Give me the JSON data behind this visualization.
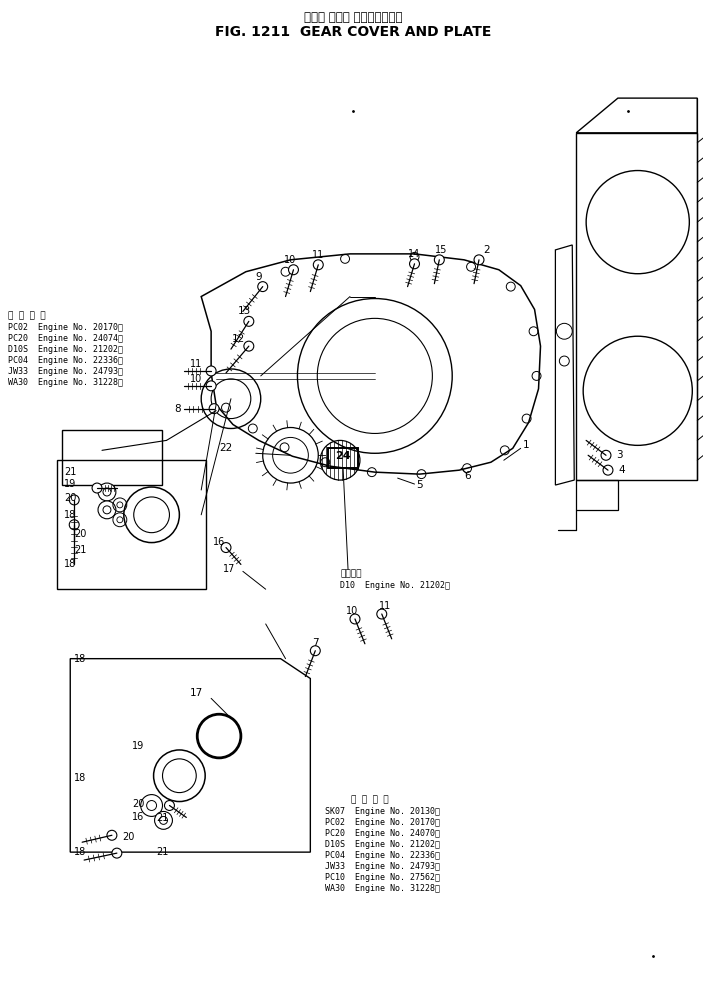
{
  "title_jp": "ギヤー カバー およびプレート",
  "title_en": "FIG. 1211  GEAR COVER AND PLATE",
  "bg_color": "#ffffff",
  "fig_width": 7.06,
  "fig_height": 9.81,
  "app_top_header": "適 用 号 機",
  "app_top_lines": [
    "PC02  Engine No. 20170～",
    "PC20  Engine No. 24074～",
    "D10S  Engine No. 21202～",
    "PC04  Engine No. 22336～",
    "JW33  Engine No. 24793～",
    "WA30  Engine No. 31228～"
  ],
  "app_mid_header": "適用号機",
  "app_mid_lines": [
    "D10  Engine No. 21202～"
  ],
  "app_bot_header": "適 用 号 機",
  "app_bot_lines": [
    "SK07  Engine No. 20130～",
    "PC02  Engine No. 20170～",
    "PC20  Engine No. 24070～",
    "D10S  Engine No. 21202～",
    "PC04  Engine No. 22336～",
    "JW33  Engine No. 24793～",
    "PC10  Engine No. 27562～",
    "WA30  Engine No. 31228～"
  ]
}
